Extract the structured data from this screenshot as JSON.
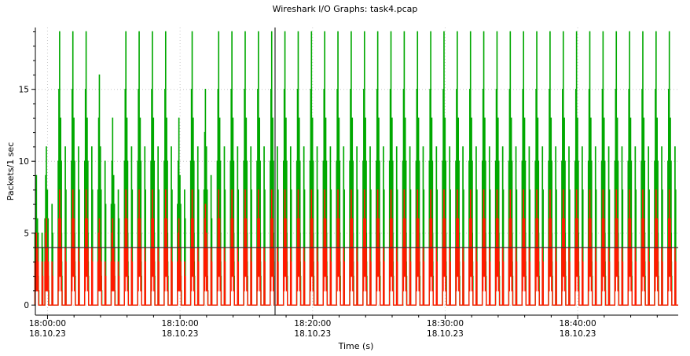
{
  "chart_data": {
    "type": "line",
    "title": "Wireshark I/O Graphs: task4.pcap",
    "xlabel": "Time (s)",
    "ylabel": "Packets/1 sec",
    "ylim": [
      -0.7,
      19.3
    ],
    "yticks": [
      0,
      5,
      10,
      15
    ],
    "x_range_minutes": [
      "17:59:05",
      "18:47:35"
    ],
    "xticks": [
      {
        "time": "18:00:00",
        "date": "18.10.23"
      },
      {
        "time": "18:10:00",
        "date": "18.10.23"
      },
      {
        "time": "18:20:00",
        "date": "18.10.23"
      },
      {
        "time": "18:30:00",
        "date": "18.10.23"
      },
      {
        "time": "18:40:00",
        "date": "18.10.23"
      }
    ],
    "grid": true,
    "colors": {
      "series_green": "#00a800",
      "series_red": "#ff1a00",
      "grid": "#c8c8c8",
      "axis": "#000000",
      "cursor": "#555555"
    },
    "reference_line_y": 4,
    "cursor_time": "18:17:10",
    "series": [
      {
        "color": "green",
        "burst_times": [
          "17:59:05",
          "17:59:50",
          "18:00:50",
          "18:01:50",
          "18:02:50",
          "18:03:50",
          "18:04:50",
          "18:05:50",
          "18:06:50",
          "18:07:50",
          "18:08:50",
          "18:09:50",
          "18:10:50",
          "18:11:50",
          "18:12:50",
          "18:13:50",
          "18:14:50",
          "18:15:50",
          "18:16:50",
          "18:17:50",
          "18:18:50",
          "18:19:50",
          "18:20:50",
          "18:21:50",
          "18:22:50",
          "18:23:50",
          "18:24:50",
          "18:25:50",
          "18:26:50",
          "18:27:50",
          "18:28:50",
          "18:29:50",
          "18:30:50",
          "18:31:50",
          "18:32:50",
          "18:33:50",
          "18:34:50",
          "18:35:50",
          "18:36:50",
          "18:37:50",
          "18:38:50",
          "18:39:50",
          "18:40:50",
          "18:41:50",
          "18:42:50",
          "18:43:50",
          "18:44:50",
          "18:45:50",
          "18:46:50"
        ],
        "burst_peaks": [
          9,
          11,
          19,
          19,
          19,
          16,
          13,
          19,
          19,
          19,
          19,
          13,
          19,
          15,
          19,
          19,
          19,
          19,
          19,
          19,
          19,
          19,
          19,
          19,
          19,
          19,
          19,
          19,
          19,
          19,
          19,
          19,
          19,
          19,
          19,
          19,
          19,
          19,
          19,
          19,
          19,
          19,
          19,
          19,
          19,
          19,
          19,
          19,
          19
        ]
      },
      {
        "color": "red",
        "burst_times": [
          "17:59:05",
          "17:59:50",
          "18:00:50",
          "18:01:50",
          "18:02:50",
          "18:03:50",
          "18:04:50",
          "18:05:50",
          "18:06:50",
          "18:07:50",
          "18:08:50",
          "18:09:50",
          "18:10:50",
          "18:11:50",
          "18:12:50",
          "18:13:50",
          "18:14:50",
          "18:15:50",
          "18:16:50",
          "18:17:50",
          "18:18:50",
          "18:19:50",
          "18:20:50",
          "18:21:50",
          "18:22:50",
          "18:23:50",
          "18:24:50",
          "18:25:50",
          "18:26:50",
          "18:27:50",
          "18:28:50",
          "18:29:50",
          "18:30:50",
          "18:31:50",
          "18:32:50",
          "18:33:50",
          "18:34:50",
          "18:35:50",
          "18:36:50",
          "18:37:50",
          "18:38:50",
          "18:39:50",
          "18:40:50",
          "18:41:50",
          "18:42:50",
          "18:43:50",
          "18:44:50",
          "18:45:50",
          "18:46:50"
        ],
        "burst_peaks": [
          5,
          6,
          8,
          8,
          8,
          6,
          6,
          8,
          8,
          8,
          8,
          6,
          8,
          7,
          8,
          8,
          8,
          8,
          8,
          8,
          8,
          8,
          8,
          8,
          8,
          8,
          8,
          8,
          8,
          8,
          8,
          8,
          8,
          8,
          8,
          8,
          8,
          8,
          8,
          8,
          8,
          8,
          8,
          8,
          8,
          8,
          8,
          8,
          8
        ]
      }
    ]
  }
}
